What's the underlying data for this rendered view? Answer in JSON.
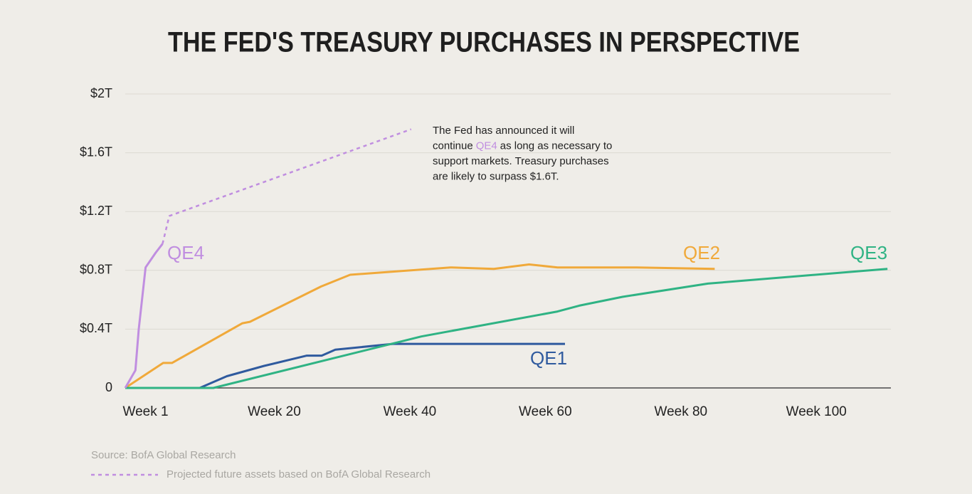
{
  "chart_data": {
    "type": "line",
    "title": "THE FED'S TREASURY PURCHASES IN PERSPECTIVE",
    "source": "Source: BofA Global Research",
    "xlim": [
      -2,
      111
    ],
    "xticks": [
      {
        "value": 1,
        "label": "Week 1"
      },
      {
        "value": 20,
        "label": "Week 20"
      },
      {
        "value": 40,
        "label": "Week 40"
      },
      {
        "value": 60,
        "label": "Week 60"
      },
      {
        "value": 80,
        "label": "Week 80"
      },
      {
        "value": 100,
        "label": "Week 100"
      }
    ],
    "ylim": [
      0,
      2
    ],
    "yticks": [
      0,
      {
        "value": 0.4,
        "label": "$0.4T"
      },
      {
        "value": 0.8,
        "label": "$0.8T"
      },
      {
        "value": 1.2,
        "label": "$1.2T"
      },
      {
        "value": 1.6,
        "label": "$1.6T"
      },
      {
        "value": 2,
        "label": "$2T"
      }
    ],
    "grid": true,
    "series": [
      {
        "name": "QE1",
        "color": "#2f5a9e",
        "dashed": false,
        "x": [
          -2,
          9,
          13,
          18.5,
          24.8,
          27,
          29,
          37.5,
          62.9
        ],
        "values": [
          0,
          0,
          0.08,
          0.15,
          0.22,
          0.22,
          0.26,
          0.3,
          0.3
        ]
      },
      {
        "name": "QE2",
        "color": "#f0a93a",
        "dashed": false,
        "x": [
          -2,
          3.6,
          4.9,
          15.3,
          16.4,
          26.9,
          31.2,
          46,
          52.4,
          57.6,
          61.8,
          73.5,
          85
        ],
        "values": [
          0,
          0.17,
          0.17,
          0.44,
          0.45,
          0.69,
          0.77,
          0.82,
          0.81,
          0.84,
          0.82,
          0.82,
          0.81
        ]
      },
      {
        "name": "QE3",
        "color": "#2fb384",
        "dashed": false,
        "x": [
          -2,
          11,
          41.7,
          61.8,
          65,
          71.4,
          84,
          110.5
        ],
        "values": [
          0,
          0,
          0.35,
          0.52,
          0.56,
          0.62,
          0.71,
          0.81
        ]
      },
      {
        "name": "QE4",
        "color": "#c08ee0",
        "dashed": false,
        "x": [
          -2,
          -0.5,
          0,
          1,
          2.5,
          3.5
        ],
        "values": [
          0,
          0.12,
          0.4,
          0.82,
          0.92,
          0.98
        ]
      },
      {
        "name": "Projected future assets based on BofA Global Research",
        "color": "#c08ee0",
        "dashed": true,
        "x": [
          3.5,
          4.5,
          40.2
        ],
        "values": [
          0.98,
          1.17,
          1.76
        ]
      }
    ],
    "annotation": {
      "lines": [
        "The Fed has announced it will",
        [
          "continue",
          "QE4",
          "as long as necessary to"
        ],
        "support markets. Treasury purchases",
        "are likely to surpass $1.6T."
      ]
    }
  }
}
